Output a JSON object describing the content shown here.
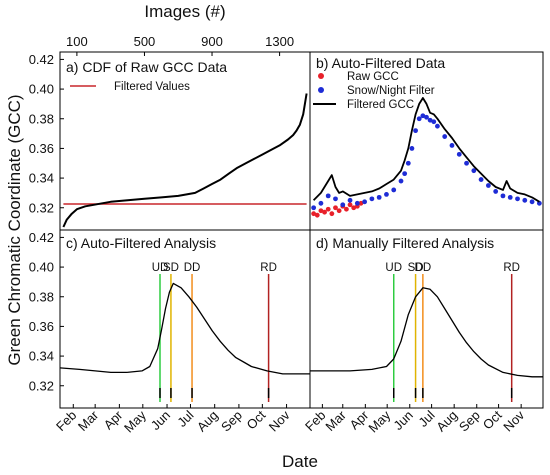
{
  "figure": {
    "ylabel": "Green Chromatic Coordinate (GCC)",
    "xlabel": "Date",
    "top_xlabel": "Images (#)"
  },
  "axes": {
    "y_ticks": [
      "0.32",
      "0.34",
      "0.36",
      "0.38",
      "0.40",
      "0.42"
    ],
    "y_range": [
      0.305,
      0.425
    ],
    "image_ticks": [
      "100",
      "500",
      "900",
      "1300"
    ],
    "image_range": [
      0,
      1480
    ],
    "month_ticks": [
      "Feb",
      "Mar",
      "Apr",
      "May",
      "Jun",
      "Jul",
      "Aug",
      "Sep",
      "Oct",
      "Nov"
    ],
    "month_day_of_year": [
      32,
      60,
      91,
      121,
      152,
      182,
      213,
      244,
      274,
      305
    ],
    "doy_range": [
      15,
      335
    ]
  },
  "colors": {
    "raw": "#e8202a",
    "snow_night": "#1e2cd6",
    "filtered": "#000000",
    "cdf_threshold": "#c8262b",
    "UD": "#2ecc40",
    "SD": "#e0b400",
    "DD": "#f28e1c",
    "RD": "#b22222"
  },
  "panels": {
    "a": {
      "title": "a) CDF of Raw GCC Data",
      "legend": [
        "Filtered Values"
      ]
    },
    "b": {
      "title": "b) Auto-Filtered Data",
      "legend": [
        "Raw GCC",
        "Snow/Night Filter",
        "Filtered GCC"
      ]
    },
    "c": {
      "title": "c) Auto-Filtered Analysis",
      "events": [
        "UD",
        "SD",
        "DD",
        "RD"
      ]
    },
    "d": {
      "title": "d) Manually Filtered Analysis",
      "events": [
        "UD",
        "SD",
        "DD",
        "RD"
      ]
    }
  },
  "chart_data": [
    {
      "panel": "a",
      "type": "line",
      "title": "a) CDF of Raw GCC Data",
      "xlabel": "Images (#)",
      "ylabel": "Green Chromatic Coordinate (GCC)",
      "xlim": [
        0,
        1480
      ],
      "ylim": [
        0.305,
        0.425
      ],
      "series": [
        {
          "x": [
            20,
            40,
            70,
            100,
            150,
            200,
            250,
            300,
            400,
            500,
            600,
            700,
            750,
            800,
            850,
            900,
            950,
            1000,
            1050,
            1100,
            1150,
            1200,
            1250,
            1300,
            1350,
            1380,
            1400,
            1420,
            1440,
            1460
          ],
          "y": [
            0.307,
            0.312,
            0.316,
            0.319,
            0.321,
            0.322,
            0.323,
            0.324,
            0.325,
            0.326,
            0.327,
            0.328,
            0.329,
            0.33,
            0.333,
            0.336,
            0.339,
            0.343,
            0.347,
            0.35,
            0.353,
            0.356,
            0.359,
            0.362,
            0.366,
            0.369,
            0.372,
            0.376,
            0.383,
            0.397
          ]
        },
        {
          "name": "Filtered Values",
          "x": [
            20,
            1460
          ],
          "y": [
            0.3225,
            0.3225
          ]
        }
      ]
    },
    {
      "panel": "b",
      "type": "scatter",
      "title": "b) Auto-Filtered Data",
      "xlim": [
        15,
        335
      ],
      "ylim": [
        0.305,
        0.425
      ],
      "series": [
        {
          "name": "Raw GCC",
          "x": [
            20,
            25,
            30,
            35,
            40,
            45,
            50,
            55,
            60,
            65,
            70,
            75,
            80,
            85
          ],
          "y": [
            0.316,
            0.315,
            0.318,
            0.317,
            0.319,
            0.316,
            0.32,
            0.318,
            0.321,
            0.319,
            0.322,
            0.32,
            0.321,
            0.323
          ]
        },
        {
          "name": "Snow/Night Filter",
          "x": [
            20,
            30,
            40,
            50,
            60,
            70,
            80,
            90,
            100,
            110,
            120,
            130,
            140,
            145,
            150,
            155,
            160,
            165,
            170,
            175,
            180,
            185,
            190,
            200,
            210,
            220,
            230,
            240,
            250,
            260,
            270,
            280,
            290,
            300,
            310,
            320,
            330
          ],
          "y": [
            0.32,
            0.323,
            0.328,
            0.326,
            0.322,
            0.325,
            0.323,
            0.324,
            0.326,
            0.327,
            0.329,
            0.332,
            0.338,
            0.343,
            0.35,
            0.36,
            0.372,
            0.38,
            0.382,
            0.381,
            0.379,
            0.378,
            0.375,
            0.368,
            0.362,
            0.356,
            0.35,
            0.345,
            0.339,
            0.335,
            0.331,
            0.328,
            0.327,
            0.326,
            0.325,
            0.324,
            0.323
          ]
        },
        {
          "name": "Filtered GCC",
          "x": [
            20,
            30,
            40,
            45,
            50,
            55,
            60,
            70,
            80,
            90,
            100,
            110,
            120,
            130,
            140,
            145,
            150,
            155,
            160,
            165,
            170,
            175,
            180,
            185,
            190,
            200,
            210,
            220,
            230,
            240,
            250,
            260,
            270,
            280,
            285,
            290,
            300,
            310,
            320,
            330
          ],
          "y": [
            0.325,
            0.33,
            0.338,
            0.342,
            0.334,
            0.33,
            0.331,
            0.328,
            0.329,
            0.33,
            0.331,
            0.333,
            0.336,
            0.339,
            0.345,
            0.352,
            0.36,
            0.372,
            0.383,
            0.39,
            0.394,
            0.39,
            0.384,
            0.383,
            0.38,
            0.373,
            0.367,
            0.36,
            0.354,
            0.348,
            0.343,
            0.338,
            0.334,
            0.332,
            0.338,
            0.333,
            0.33,
            0.329,
            0.327,
            0.324
          ]
        }
      ]
    },
    {
      "panel": "c",
      "type": "line",
      "title": "c) Auto-Filtered Analysis",
      "xlim": [
        15,
        335
      ],
      "ylim": [
        0.305,
        0.425
      ],
      "series": [
        {
          "x": [
            15,
            40,
            60,
            80,
            100,
            120,
            130,
            140,
            145,
            150,
            155,
            160,
            170,
            180,
            190,
            200,
            210,
            220,
            230,
            240,
            250,
            260,
            280,
            300,
            320,
            335
          ],
          "y": [
            0.332,
            0.331,
            0.33,
            0.329,
            0.329,
            0.33,
            0.333,
            0.345,
            0.358,
            0.372,
            0.383,
            0.389,
            0.386,
            0.38,
            0.373,
            0.365,
            0.357,
            0.35,
            0.344,
            0.339,
            0.336,
            0.333,
            0.33,
            0.328,
            0.328,
            0.328
          ]
        }
      ],
      "events": [
        {
          "name": "UD",
          "doy": 143
        },
        {
          "name": "SD",
          "doy": 157
        },
        {
          "name": "DD",
          "doy": 184
        },
        {
          "name": "RD",
          "doy": 282
        }
      ]
    },
    {
      "panel": "d",
      "type": "line",
      "title": "d) Manually Filtered Analysis",
      "xlim": [
        15,
        335
      ],
      "ylim": [
        0.305,
        0.425
      ],
      "series": [
        {
          "x": [
            15,
            40,
            70,
            100,
            120,
            130,
            140,
            150,
            160,
            170,
            180,
            190,
            200,
            210,
            220,
            230,
            240,
            250,
            260,
            280,
            300,
            320,
            335
          ],
          "y": [
            0.33,
            0.33,
            0.33,
            0.331,
            0.333,
            0.338,
            0.35,
            0.368,
            0.38,
            0.386,
            0.385,
            0.38,
            0.372,
            0.364,
            0.356,
            0.349,
            0.343,
            0.338,
            0.334,
            0.329,
            0.327,
            0.326,
            0.326
          ]
        }
      ],
      "events": [
        {
          "name": "UD",
          "doy": 130
        },
        {
          "name": "SD",
          "doy": 160
        },
        {
          "name": "DD",
          "doy": 170
        },
        {
          "name": "RD",
          "doy": 292
        }
      ]
    }
  ]
}
